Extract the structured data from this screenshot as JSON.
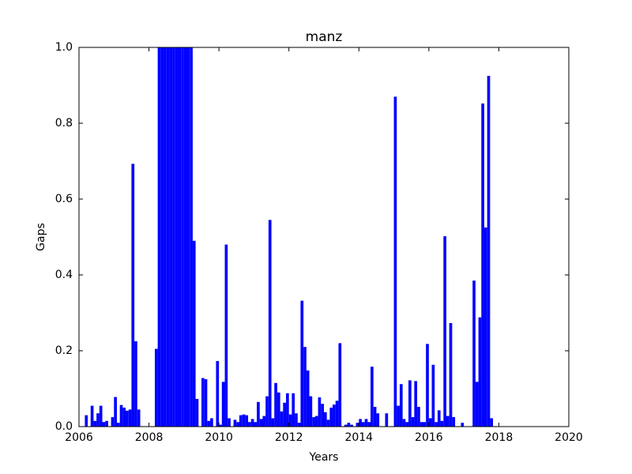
{
  "chart_data": {
    "type": "bar",
    "title": "manz",
    "xlabel": "Years",
    "ylabel": "Gaps",
    "color": "#0000ff",
    "x": [
      2006.167,
      2006.333,
      2006.417,
      2006.5,
      2006.583,
      2006.667,
      2006.75,
      2006.917,
      2007,
      2007.083,
      2007.167,
      2007.25,
      2007.333,
      2007.417,
      2007.5,
      2007.583,
      2007.667,
      2008.167,
      2008.25,
      2008.333,
      2008.417,
      2008.5,
      2008.583,
      2008.667,
      2008.75,
      2008.833,
      2008.917,
      2009,
      2009.083,
      2009.167,
      2009.25,
      2009.333,
      2009.5,
      2009.583,
      2009.667,
      2009.75,
      2009.917,
      2010,
      2010.083,
      2010.167,
      2010.25,
      2010.417,
      2010.5,
      2010.583,
      2010.667,
      2010.75,
      2010.833,
      2010.917,
      2011,
      2011.083,
      2011.167,
      2011.25,
      2011.333,
      2011.417,
      2011.5,
      2011.583,
      2011.667,
      2011.75,
      2011.833,
      2011.917,
      2012,
      2012.083,
      2012.167,
      2012.25,
      2012.333,
      2012.417,
      2012.5,
      2012.583,
      2012.667,
      2012.75,
      2012.833,
      2012.917,
      2013,
      2013.083,
      2013.167,
      2013.25,
      2013.333,
      2013.417,
      2013.583,
      2013.667,
      2013.75,
      2013.917,
      2014,
      2014.083,
      2014.167,
      2014.25,
      2014.333,
      2014.417,
      2014.5,
      2014.75,
      2015,
      2015.083,
      2015.167,
      2015.25,
      2015.333,
      2015.417,
      2015.5,
      2015.583,
      2015.667,
      2015.75,
      2015.833,
      2015.917,
      2016,
      2016.083,
      2016.167,
      2016.25,
      2016.333,
      2016.417,
      2016.5,
      2016.583,
      2016.667,
      2016.917,
      2017.25,
      2017.333,
      2017.417,
      2017.5,
      2017.583,
      2017.667,
      2017.75
    ],
    "values": [
      0.03,
      0.055,
      0.015,
      0.035,
      0.055,
      0.012,
      0.015,
      0.025,
      0.078,
      0.01,
      0.057,
      0.05,
      0.042,
      0.045,
      0.693,
      0.225,
      0.045,
      0.205,
      1.0,
      1.0,
      1.0,
      1.0,
      1.0,
      1.0,
      1.0,
      1.0,
      1.0,
      1.0,
      1.0,
      1.0,
      0.49,
      0.073,
      0.128,
      0.125,
      0.015,
      0.022,
      0.173,
      0.005,
      0.118,
      0.48,
      0.022,
      0.018,
      0.012,
      0.03,
      0.032,
      0.03,
      0.012,
      0.02,
      0.012,
      0.065,
      0.02,
      0.028,
      0.08,
      0.545,
      0.022,
      0.115,
      0.09,
      0.04,
      0.063,
      0.088,
      0.032,
      0.088,
      0.035,
      0.01,
      0.332,
      0.21,
      0.148,
      0.08,
      0.025,
      0.028,
      0.077,
      0.06,
      0.038,
      0.018,
      0.05,
      0.058,
      0.068,
      0.22,
      0.005,
      0.01,
      0.005,
      0.01,
      0.02,
      0.012,
      0.02,
      0.012,
      0.158,
      0.052,
      0.035,
      0.035,
      0.87,
      0.055,
      0.112,
      0.02,
      0.012,
      0.122,
      0.025,
      0.12,
      0.052,
      0.012,
      0.012,
      0.218,
      0.022,
      0.163,
      0.012,
      0.043,
      0.015,
      0.502,
      0.028,
      0.273,
      0.025,
      0.01,
      0.385,
      0.118,
      0.288,
      0.852,
      0.525,
      0.925,
      0.022
    ],
    "xlim": [
      2006,
      2020
    ],
    "xticks": [
      2006,
      2008,
      2010,
      2012,
      2014,
      2016,
      2018,
      2020
    ],
    "ylim": [
      0,
      1
    ],
    "yticks": [
      {
        "value": 0,
        "label": "0.0"
      },
      0.2,
      0.4,
      0.6,
      0.8,
      {
        "value": 1,
        "label": "1.0"
      }
    ]
  }
}
